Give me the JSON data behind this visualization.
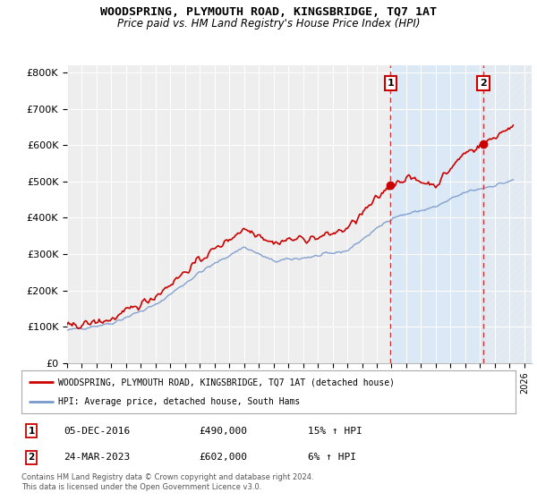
{
  "title": "WOODSPRING, PLYMOUTH ROAD, KINGSBRIDGE, TQ7 1AT",
  "subtitle": "Price paid vs. HM Land Registry's House Price Index (HPI)",
  "ylabel_ticks": [
    "£0",
    "£100K",
    "£200K",
    "£300K",
    "£400K",
    "£500K",
    "£600K",
    "£700K",
    "£800K"
  ],
  "ytick_values": [
    0,
    100000,
    200000,
    300000,
    400000,
    500000,
    600000,
    700000,
    800000
  ],
  "ylim": [
    0,
    820000
  ],
  "xlim_start": 1995.0,
  "xlim_end": 2026.5,
  "line1_color": "#cc0000",
  "line2_color": "#7799cc",
  "sale1_x": 2016.92,
  "sale1_y": 490000,
  "sale1_label": "1",
  "sale2_x": 2023.23,
  "sale2_y": 602000,
  "sale2_label": "2",
  "vline1_x": 2016.92,
  "vline2_x": 2023.23,
  "vline_color": "#cc3333",
  "legend_entry1": "WOODSPRING, PLYMOUTH ROAD, KINGSBRIDGE, TQ7 1AT (detached house)",
  "legend_entry2": "HPI: Average price, detached house, South Hams",
  "table_row1_num": "1",
  "table_row1_date": "05-DEC-2016",
  "table_row1_price": "£490,000",
  "table_row1_hpi": "15% ↑ HPI",
  "table_row2_num": "2",
  "table_row2_date": "24-MAR-2023",
  "table_row2_price": "£602,000",
  "table_row2_hpi": "6% ↑ HPI",
  "footer": "Contains HM Land Registry data © Crown copyright and database right 2024.\nThis data is licensed under the Open Government Licence v3.0.",
  "bg_color": "#ffffff",
  "plot_bg_color": "#eeeeee",
  "shaded_region_color": "#dbe8f5",
  "grid_color": "#ffffff"
}
